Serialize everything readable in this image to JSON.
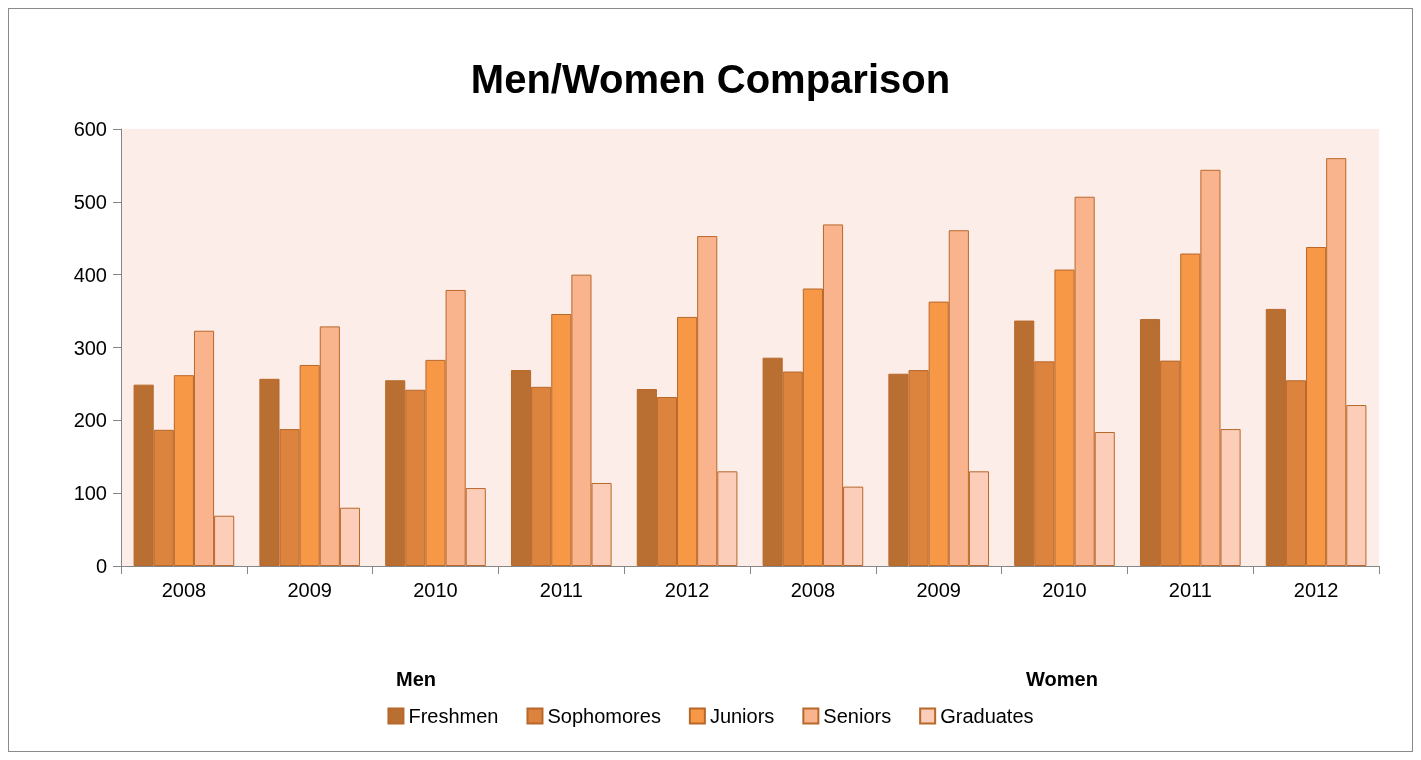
{
  "chart_data": {
    "type": "bar",
    "title": "Men/Women Comparison",
    "categories": [
      "2008",
      "2009",
      "2010",
      "2011",
      "2012",
      "2008",
      "2009",
      "2010",
      "2011",
      "2012"
    ],
    "series": [
      {
        "name": "Freshmen",
        "color": "#b96f31",
        "values": [
          249,
          257,
          255,
          269,
          243,
          286,
          264,
          337,
          339,
          353
        ]
      },
      {
        "name": "Sophomores",
        "color": "#dc833d",
        "values": [
          187,
          188,
          242,
          246,
          232,
          267,
          269,
          281,
          282,
          255
        ]
      },
      {
        "name": "Juniors",
        "color": "#f69846",
        "values": [
          262,
          276,
          283,
          346,
          342,
          381,
          363,
          407,
          429,
          438
        ]
      },
      {
        "name": "Seniors",
        "color": "#f9b38d",
        "values": [
          323,
          329,
          379,
          400,
          453,
          469,
          461,
          507,
          544,
          560
        ]
      },
      {
        "name": "Graduates",
        "color": "#fccdb8",
        "values": [
          69,
          80,
          107,
          114,
          130,
          109,
          130,
          184,
          188,
          221
        ]
      }
    ],
    "annotations": [
      "Men",
      "Women"
    ],
    "ylim": [
      0,
      600
    ],
    "yticks": [
      0,
      100,
      200,
      300,
      400,
      500,
      600
    ],
    "grid": false,
    "legend": "bottom"
  }
}
